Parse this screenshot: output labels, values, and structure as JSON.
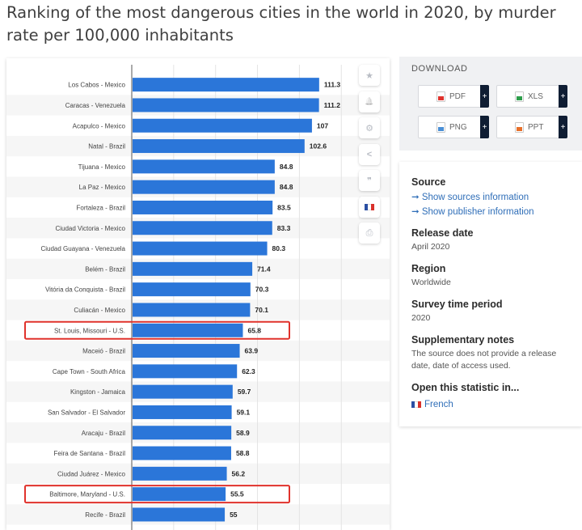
{
  "page": {
    "title": "Ranking of the most dangerous cities in the world in 2020, by murder rate per 100,000 inhabitants"
  },
  "chart_data": {
    "type": "bar",
    "orientation": "horizontal",
    "categories": [
      "Los Cabos - Mexico",
      "Caracas - Venezuela",
      "Acapulco - Mexico",
      "Natal - Brazil",
      "Tijuana - Mexico",
      "La Paz - Mexico",
      "Fortaleza - Brazil",
      "Ciudad Victoria - Mexico",
      "Ciudad Guayana - Venezuela",
      "Belém - Brazil",
      "Vitória da Conquista - Brazil",
      "Culiacán - Mexico",
      "St. Louis, Missouri - U.S.",
      "Maceió - Brazil",
      "Cape Town - South Africa",
      "Kingston - Jamaica",
      "San Salvador - El Salvador",
      "Aracaju - Brazil",
      "Feira de Santana - Brazil",
      "Ciudad Juárez - Mexico",
      "Baltimore, Maryland - U.S.",
      "Recife - Brazil"
    ],
    "values": [
      111.3,
      111.2,
      107,
      102.6,
      84.8,
      84.8,
      83.5,
      83.3,
      80.3,
      71.4,
      70.3,
      70.1,
      65.8,
      63.9,
      62.3,
      59.7,
      59.1,
      58.9,
      58.8,
      56.2,
      55.5,
      55
    ],
    "value_labels": [
      "111.3",
      "111.2",
      "107",
      "102.6",
      "84.8",
      "84.8",
      "83.5",
      "83.3",
      "80.3",
      "71.4",
      "70.3",
      "70.1",
      "65.8",
      "63.9",
      "62.3",
      "59.7",
      "59.1",
      "58.9",
      "58.8",
      "56.2",
      "55.5",
      "55"
    ],
    "highlighted": [
      "St. Louis, Missouri - U.S.",
      "Baltimore, Maryland - U.S."
    ],
    "xlim": [
      0,
      125
    ],
    "grid": true,
    "bar_color": "#2b76d9",
    "highlight_color": "#e0322c"
  },
  "toolbar": {
    "items": [
      {
        "name": "favorite-icon",
        "glyph": "★"
      },
      {
        "name": "bell-icon",
        "glyph": "🔔"
      },
      {
        "name": "settings-icon",
        "glyph": "⚙"
      },
      {
        "name": "share-icon",
        "glyph": "<"
      },
      {
        "name": "quote-icon",
        "glyph": "❞"
      },
      {
        "name": "flag-fr-icon",
        "glyph": ""
      },
      {
        "name": "print-icon",
        "glyph": "⎙"
      }
    ]
  },
  "download": {
    "title": "DOWNLOAD",
    "pdf": "PDF",
    "xls": "XLS",
    "png": "PNG",
    "ppt": "PPT",
    "plus": "+",
    "colors": {
      "pdf": "#e0322c",
      "xls": "#2e9e4b",
      "png": "#4a8fd6",
      "ppt": "#e8702a"
    }
  },
  "info": {
    "source_heading": "Source",
    "show_sources": "➞ Show sources information",
    "show_publisher": "➞ Show publisher information",
    "release_heading": "Release date",
    "release_value": "April 2020",
    "region_heading": "Region",
    "region_value": "Worldwide",
    "survey_heading": "Survey time period",
    "survey_value": "2020",
    "notes_heading": "Supplementary notes",
    "notes_value": "The source does not provide a release date, date of access used.",
    "open_heading": "Open this statistic in...",
    "open_link": "French"
  }
}
